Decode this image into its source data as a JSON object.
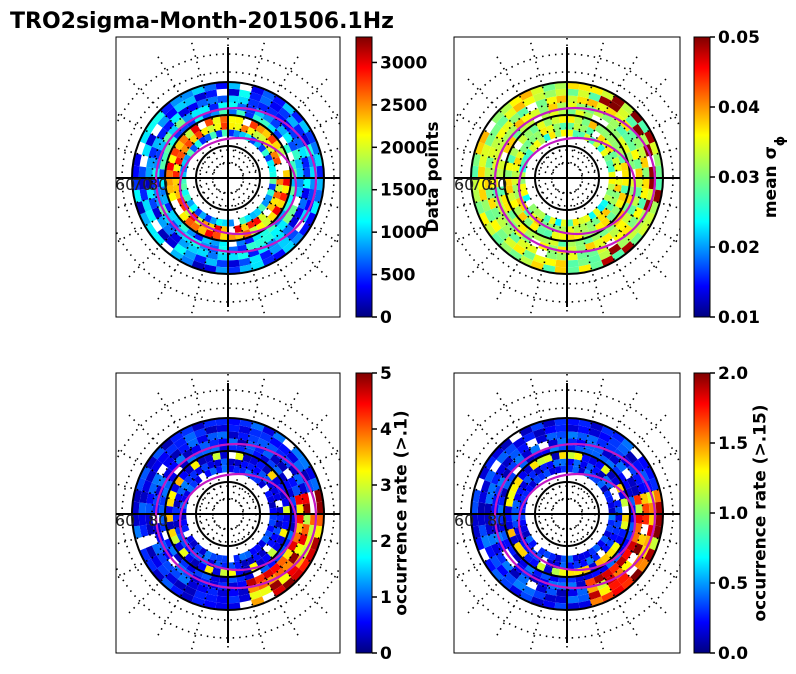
{
  "title": "TRO2sigma-Month-201506.1Hz",
  "colormap": "jet",
  "line_color": "#c418c4",
  "chart_data": [
    {
      "type": "heatmap",
      "projection": "polar",
      "colorbar_label": "Data points",
      "colorbar_range": [
        0,
        3300
      ],
      "colorbar_ticks": [
        "0",
        "500",
        "1000",
        "1500",
        "2000",
        "2500",
        "3000"
      ],
      "colorbar_tick_values": [
        0,
        500,
        1000,
        1500,
        2000,
        2500,
        3000
      ],
      "lat_labels": [
        "60",
        "70",
        "80"
      ],
      "seed": 11,
      "pattern": "count"
    },
    {
      "type": "heatmap",
      "projection": "polar",
      "colorbar_label": "mean σ",
      "colorbar_label_sub": "ϕ",
      "colorbar_range": [
        0.01,
        0.05
      ],
      "colorbar_ticks": [
        "0.01",
        "0.02",
        "0.03",
        "0.04",
        "0.05"
      ],
      "colorbar_tick_values": [
        0.01,
        0.02,
        0.03,
        0.04,
        0.05
      ],
      "lat_labels": [
        "60",
        "70",
        "80"
      ],
      "seed": 23,
      "pattern": "mean"
    },
    {
      "type": "heatmap",
      "projection": "polar",
      "colorbar_label": "occurrence rate (>.1)",
      "colorbar_range": [
        0,
        5
      ],
      "colorbar_ticks": [
        "0",
        "1",
        "2",
        "3",
        "4",
        "5"
      ],
      "colorbar_tick_values": [
        0,
        1,
        2,
        3,
        4,
        5
      ],
      "lat_labels": [
        "60",
        "80"
      ],
      "seed": 37,
      "pattern": "occurrence"
    },
    {
      "type": "heatmap",
      "projection": "polar",
      "colorbar_label": "occurrence rate (>.15)",
      "colorbar_range": [
        0,
        2
      ],
      "colorbar_ticks": [
        "0.0",
        "0.5",
        "1.0",
        "1.5",
        "2.0"
      ],
      "colorbar_tick_values": [
        0,
        0.5,
        1.0,
        1.5,
        2.0
      ],
      "lat_labels": [
        "60",
        "80"
      ],
      "seed": 41,
      "pattern": "occurrence"
    }
  ]
}
